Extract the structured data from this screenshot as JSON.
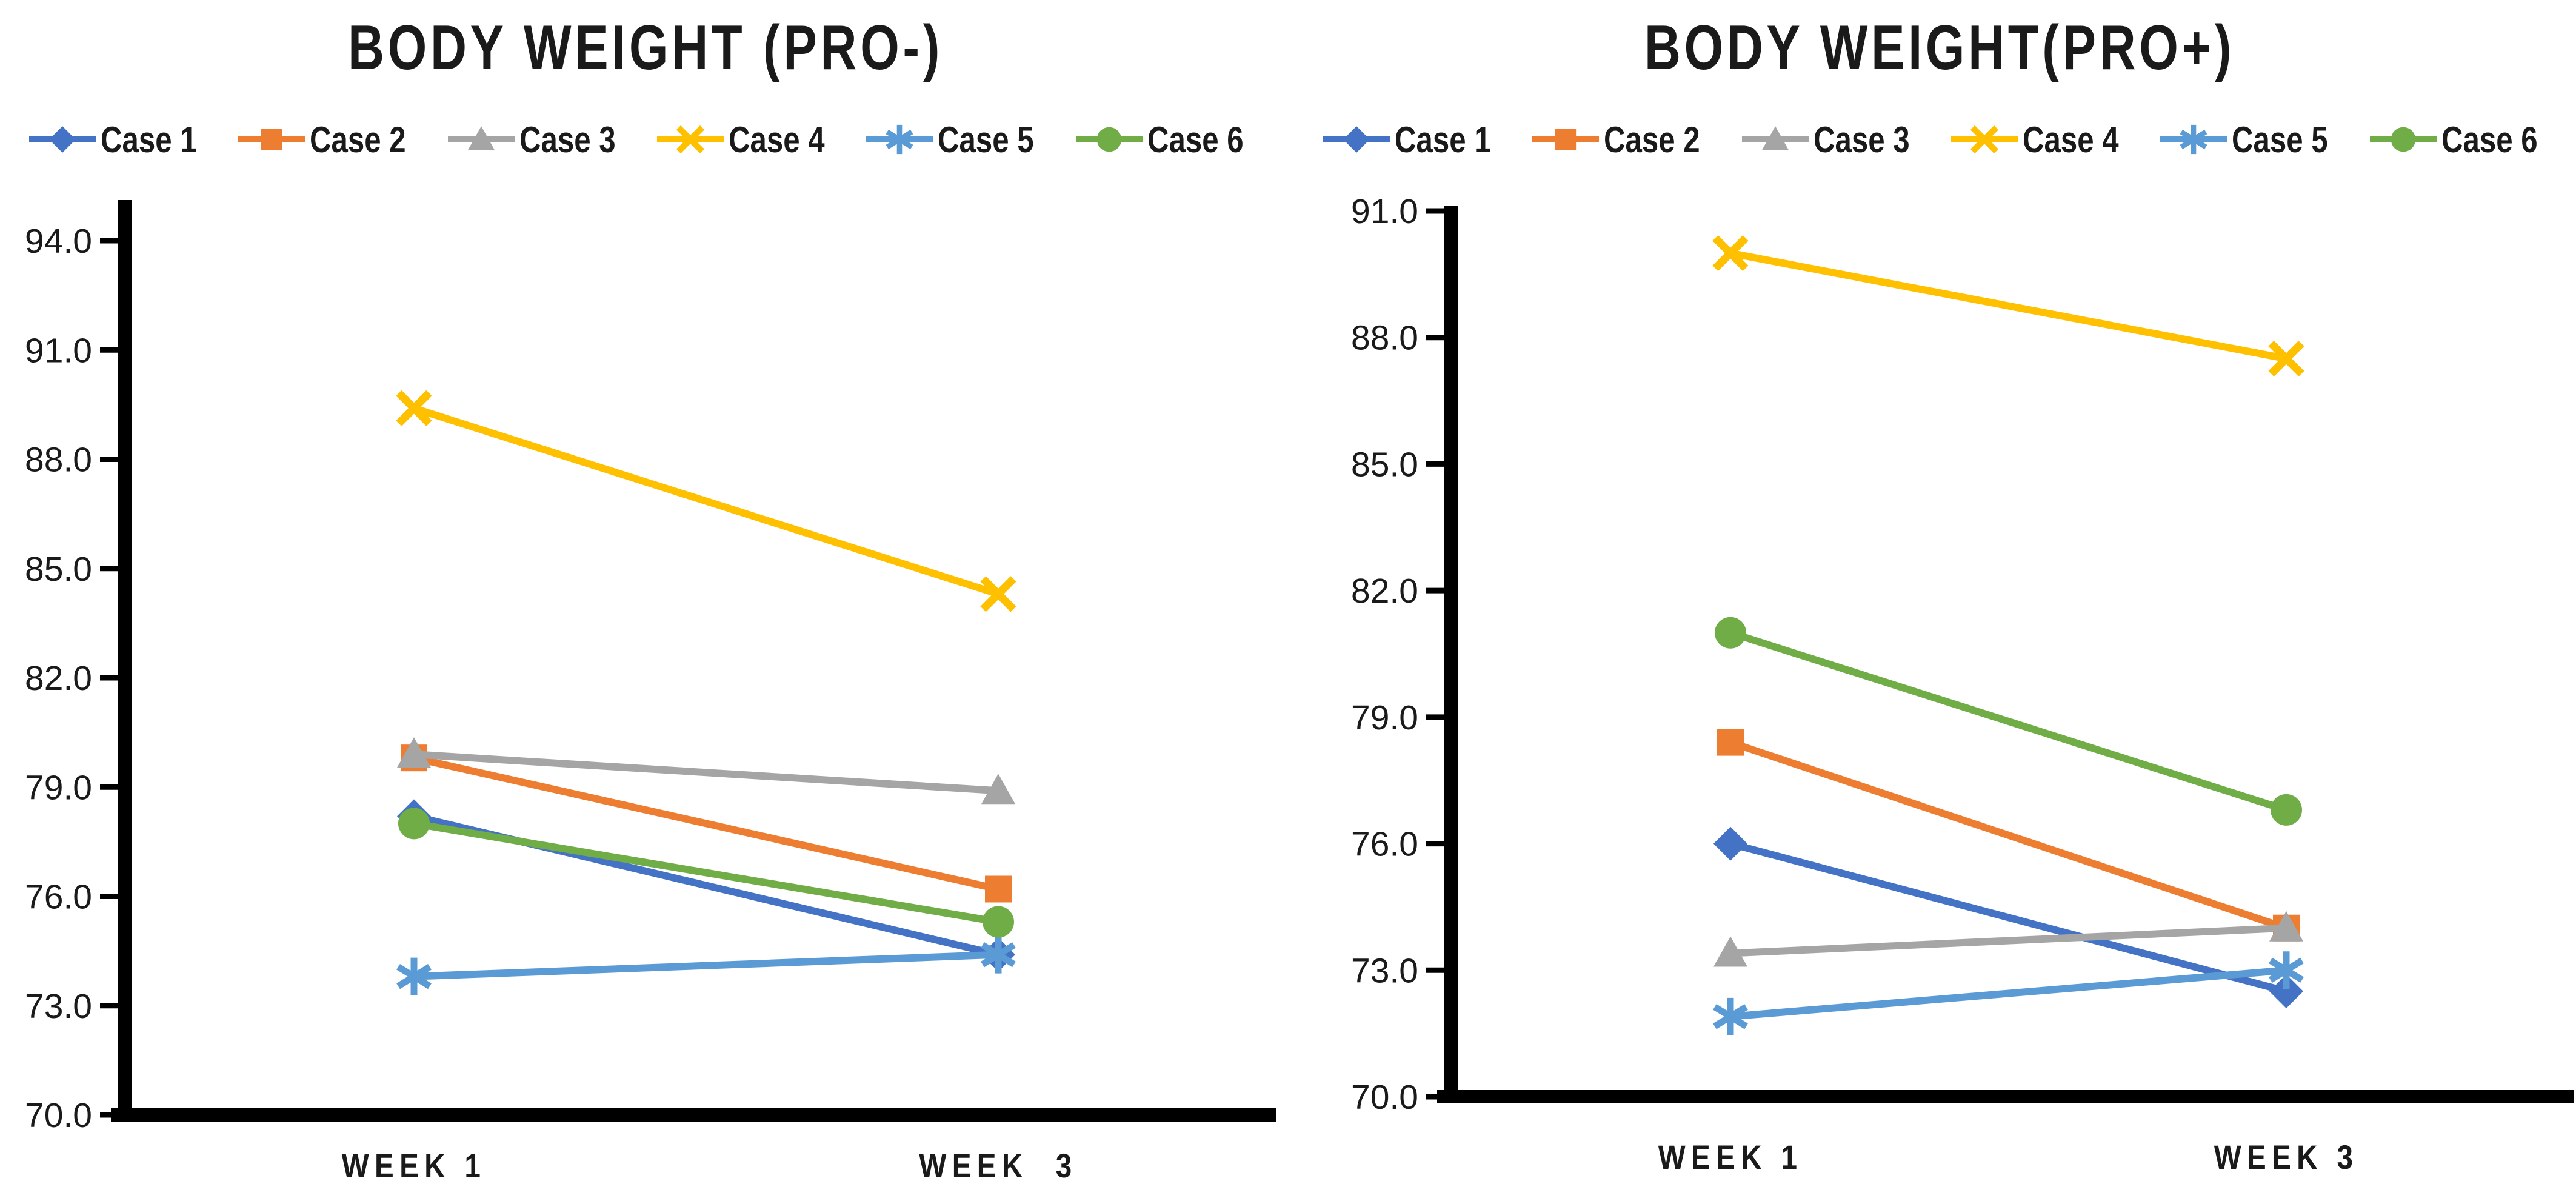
{
  "page": {
    "background": "#ffffff"
  },
  "chart_data": [
    {
      "type": "line",
      "title": "BODY WEIGHT (PRO-)",
      "categories": [
        "WEEK 1",
        "WEEK  3"
      ],
      "series": [
        {
          "name": "Case 1",
          "color": "#4472C4",
          "marker": "diamond",
          "values": [
            78.2,
            74.4
          ]
        },
        {
          "name": "Case 2",
          "color": "#ED7D31",
          "marker": "square",
          "values": [
            79.8,
            76.2
          ]
        },
        {
          "name": "Case 3",
          "color": "#A5A5A5",
          "marker": "triangle",
          "values": [
            79.9,
            78.9
          ]
        },
        {
          "name": "Case 4",
          "color": "#FFC000",
          "marker": "x",
          "values": [
            89.4,
            84.3
          ]
        },
        {
          "name": "Case 5",
          "color": "#5B9BD5",
          "marker": "asterisk",
          "values": [
            73.8,
            74.4
          ]
        },
        {
          "name": "Case 6",
          "color": "#70AD47",
          "marker": "circle",
          "values": [
            78.0,
            75.3
          ]
        }
      ],
      "ylim": [
        70.0,
        94.0
      ],
      "ytick_step": 3.0,
      "ytick_labels": [
        "94.0",
        "91.0",
        "88.0",
        "85.0",
        "82.0",
        "79.0",
        "76.0",
        "73.0",
        "70.0"
      ],
      "legend_position": "top",
      "grid": false,
      "axis_color": "#000000"
    },
    {
      "type": "line",
      "title": "BODY WEIGHT(PRO+)",
      "categories": [
        "WEEK 1",
        "WEEK 3"
      ],
      "series": [
        {
          "name": "Case 1",
          "color": "#4472C4",
          "marker": "diamond",
          "values": [
            76.0,
            72.5
          ]
        },
        {
          "name": "Case 2",
          "color": "#ED7D31",
          "marker": "square",
          "values": [
            78.4,
            74.0
          ]
        },
        {
          "name": "Case 3",
          "color": "#A5A5A5",
          "marker": "triangle",
          "values": [
            73.4,
            74.0
          ]
        },
        {
          "name": "Case 4",
          "color": "#FFC000",
          "marker": "x",
          "values": [
            90.0,
            87.5
          ]
        },
        {
          "name": "Case 5",
          "color": "#5B9BD5",
          "marker": "asterisk",
          "values": [
            71.9,
            73.0
          ]
        },
        {
          "name": "Case 6",
          "color": "#70AD47",
          "marker": "circle",
          "values": [
            81.0,
            76.8
          ]
        }
      ],
      "ylim": [
        70.0,
        91.0
      ],
      "ytick_step": 3.0,
      "ytick_labels": [
        "91.0",
        "88.0",
        "85.0",
        "82.0",
        "79.0",
        "76.0",
        "73.0",
        "70.0"
      ],
      "legend_position": "top",
      "grid": false,
      "axis_color": "#000000"
    }
  ]
}
